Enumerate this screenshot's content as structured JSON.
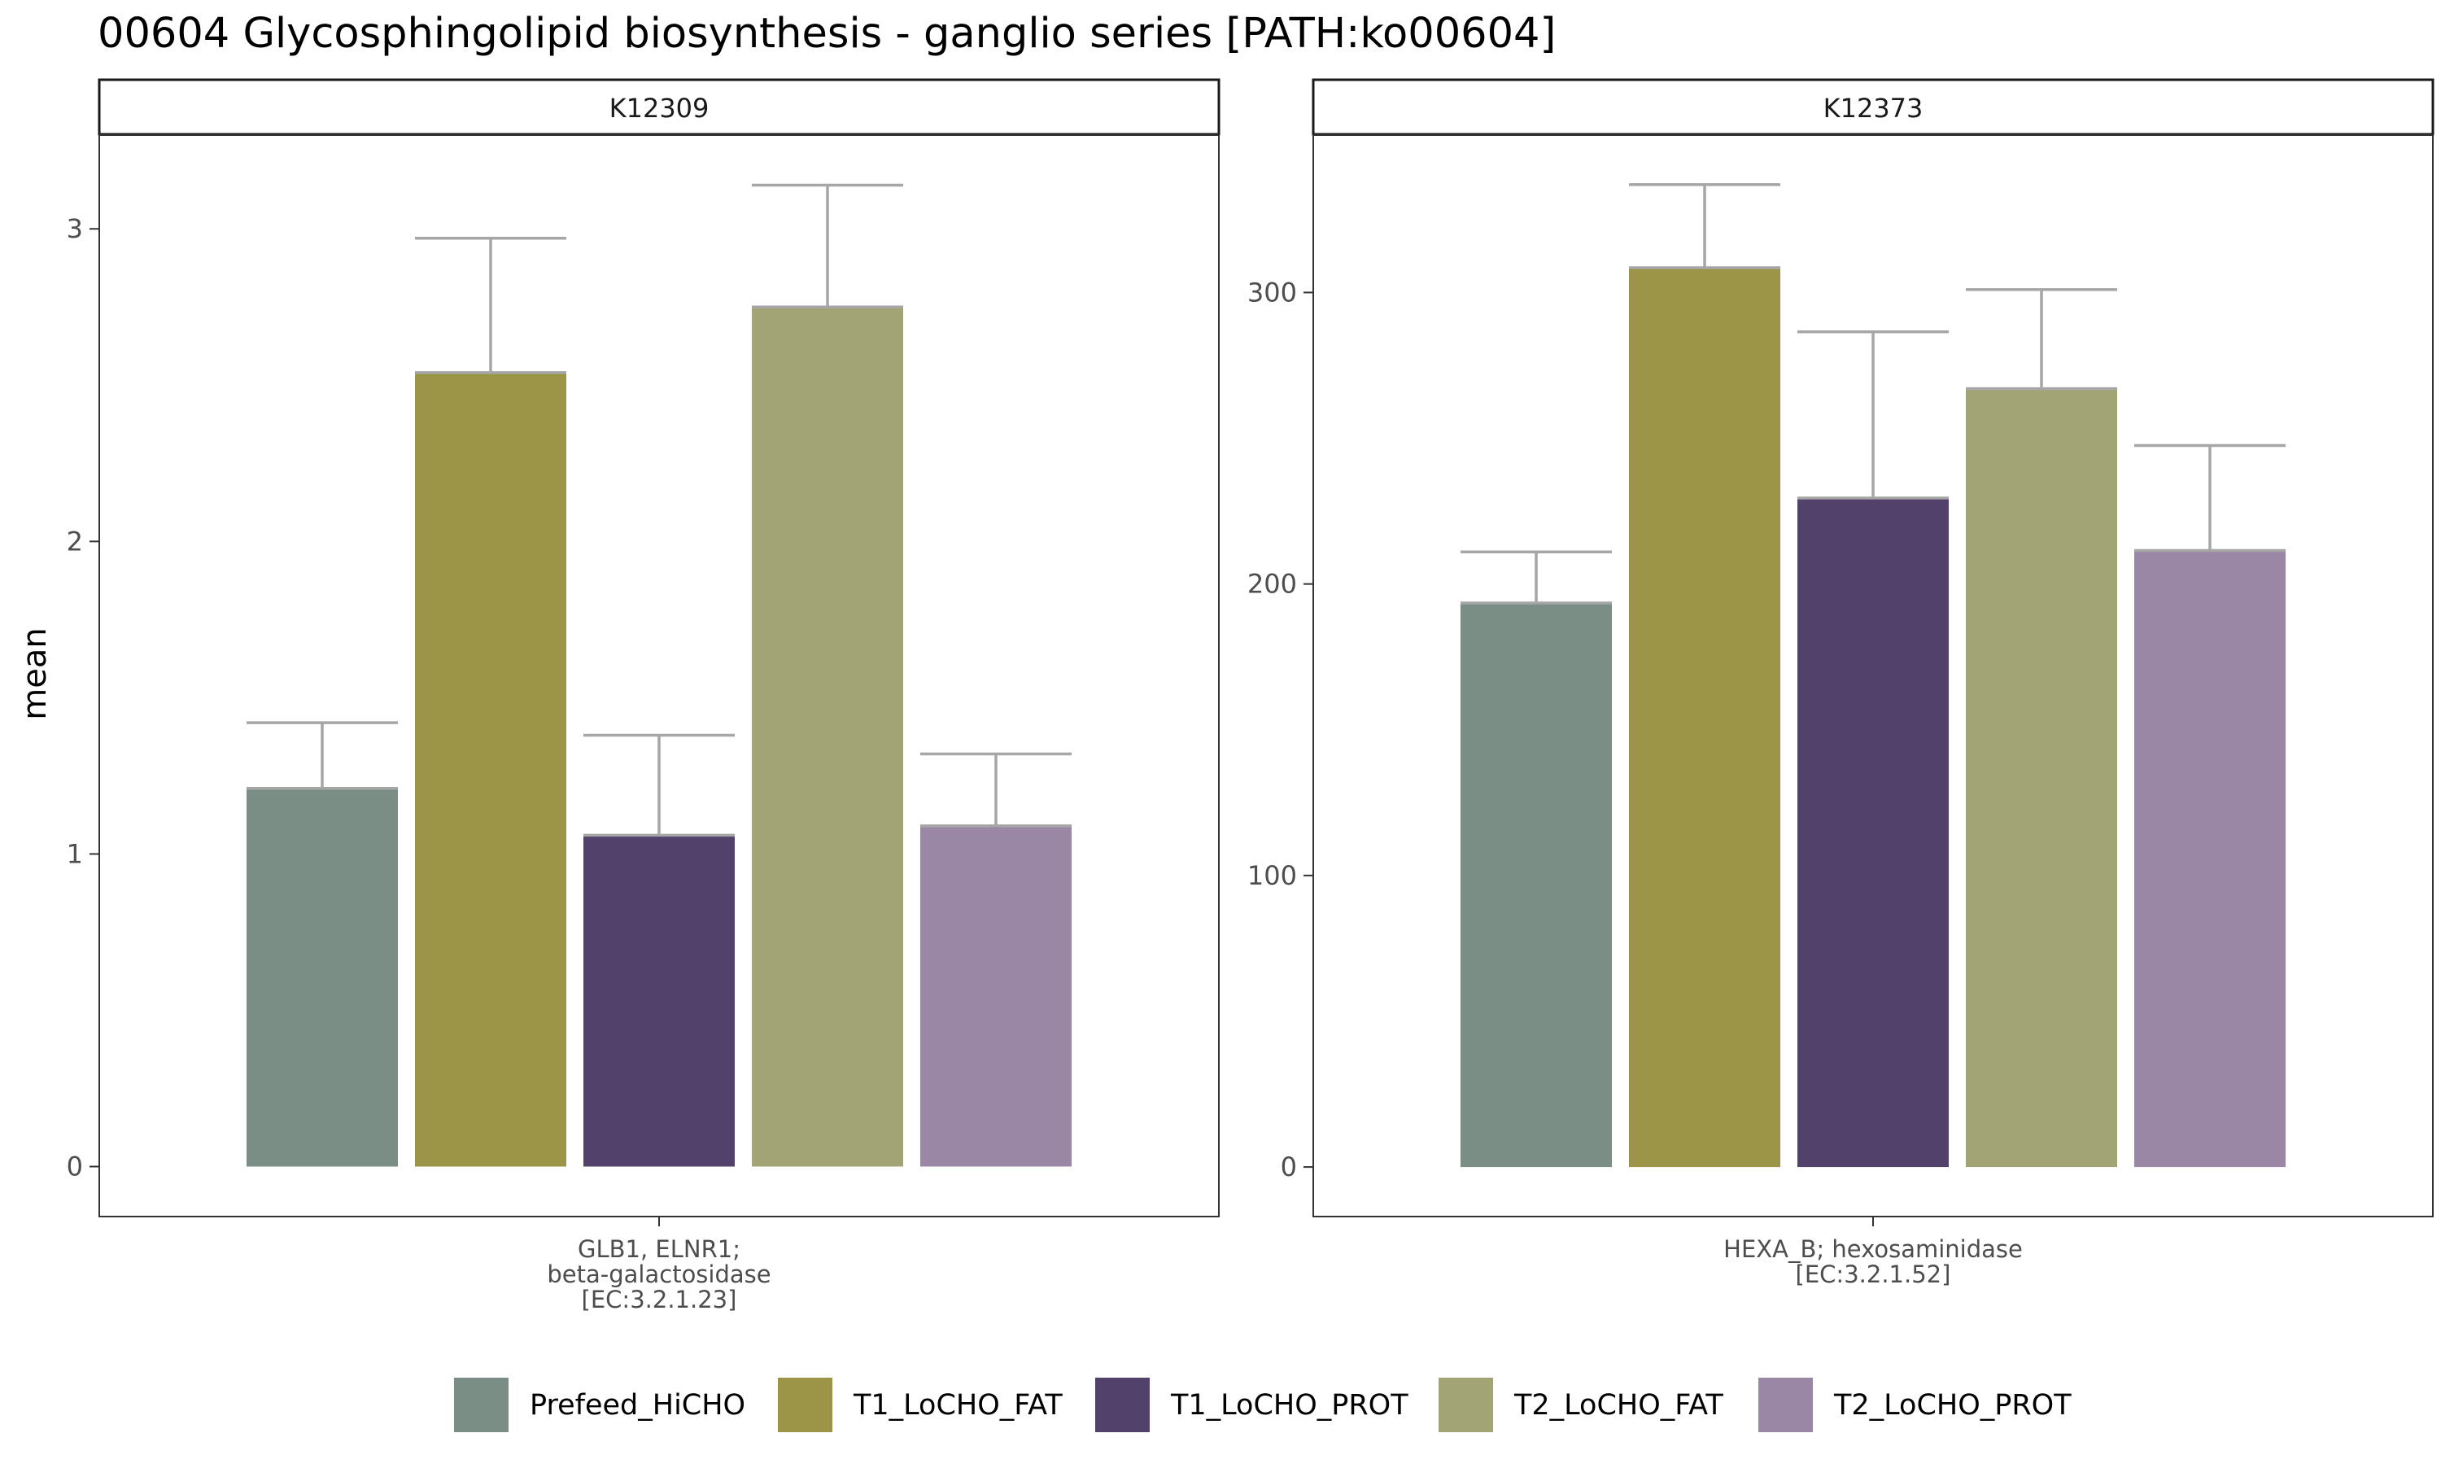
{
  "chart_data": {
    "type": "bar",
    "title": "00604 Glycosphingolipid biosynthesis - ganglio series [PATH:ko00604]",
    "ylabel": "mean",
    "legend": {
      "placement": "bottom",
      "entries": [
        "Prefeed_HiCHO",
        "T1_LoCHO_FAT",
        "T1_LoCHO_PROT",
        "T2_LoCHO_FAT",
        "T2_LoCHO_PROT"
      ]
    },
    "colors": {
      "Prefeed_HiCHO": "#7a8e86",
      "T1_LoCHO_FAT": "#9c9547",
      "T1_LoCHO_PROT": "#52416b",
      "T2_LoCHO_FAT": "#a3a475",
      "T2_LoCHO_PROT": "#9a87a6"
    },
    "error_bar_color": "#a6a6a6",
    "grid": false,
    "panels": [
      {
        "facet_label": "K12309",
        "x_category_lines": [
          "GLB1, ELNR1;",
          "beta-galactosidase",
          "[EC:3.2.1.23]"
        ],
        "ylim": [
          -0.16,
          3.3
        ],
        "y_ticks": [
          0,
          1,
          2,
          3
        ],
        "series": [
          {
            "name": "Prefeed_HiCHO",
            "value": 1.21,
            "error_upper": 1.42
          },
          {
            "name": "T1_LoCHO_FAT",
            "value": 2.54,
            "error_upper": 2.97
          },
          {
            "name": "T1_LoCHO_PROT",
            "value": 1.06,
            "error_upper": 1.38
          },
          {
            "name": "T2_LoCHO_FAT",
            "value": 2.75,
            "error_upper": 3.14
          },
          {
            "name": "T2_LoCHO_PROT",
            "value": 1.09,
            "error_upper": 1.32
          }
        ]
      },
      {
        "facet_label": "K12373",
        "x_category_lines": [
          "HEXA_B; hexosaminidase",
          "[EC:3.2.1.52]"
        ],
        "ylim": [
          -17,
          354
        ],
        "y_ticks": [
          0,
          100,
          200,
          300
        ],
        "series": [
          {
            "name": "Prefeed_HiCHO",
            "value": 193.5,
            "error_upper": 211
          },
          {
            "name": "T1_LoCHO_FAT",
            "value": 308.5,
            "error_upper": 337
          },
          {
            "name": "T1_LoCHO_PROT",
            "value": 229.5,
            "error_upper": 286.5
          },
          {
            "name": "T2_LoCHO_FAT",
            "value": 267,
            "error_upper": 301
          },
          {
            "name": "T2_LoCHO_PROT",
            "value": 211.5,
            "error_upper": 247.5
          }
        ]
      }
    ]
  }
}
